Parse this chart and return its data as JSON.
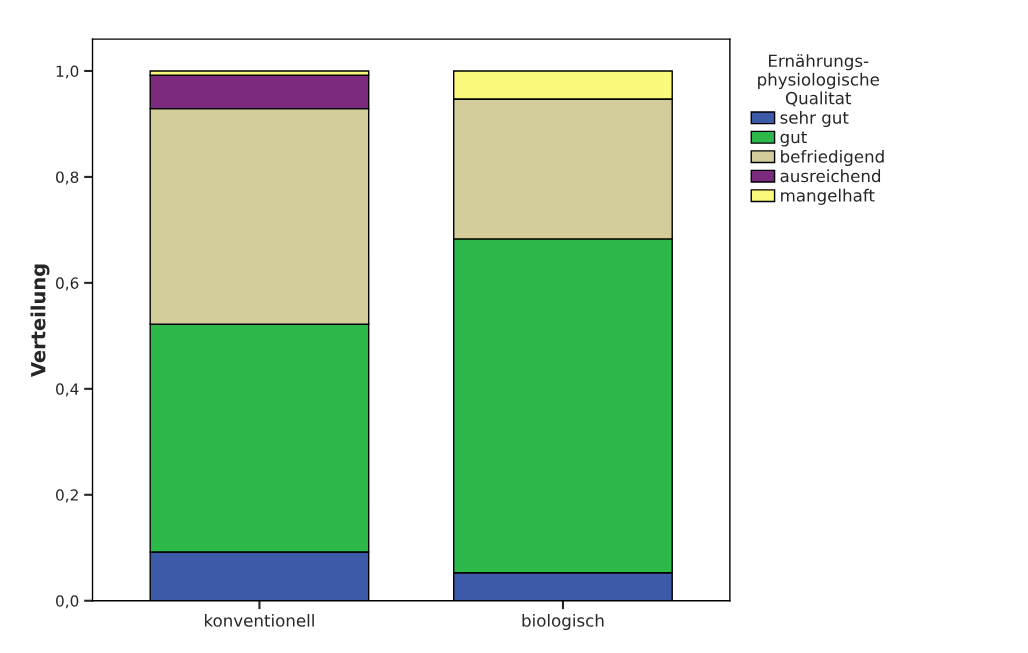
{
  "chart_data": {
    "type": "bar",
    "stacked": true,
    "ylabel": "Verteilung",
    "legend_title": "Ernährungs-\nphysiologische\nQualitat",
    "legend": "top right",
    "grid": false,
    "categories": [
      "konventionell",
      "biologisch"
    ],
    "series": [
      {
        "name": "sehr gut",
        "color": "#3d5aa8",
        "values": [
          0.092,
          0.053
        ]
      },
      {
        "name": "gut",
        "color": "#2db84a",
        "values": [
          0.43,
          0.63
        ]
      },
      {
        "name": "befriedigend",
        "color": "#d3cc9b",
        "values": [
          0.407,
          0.264
        ]
      },
      {
        "name": "ausreichend",
        "color": "#7b2a7d",
        "values": [
          0.063,
          0.0
        ]
      },
      {
        "name": "mangelhaft",
        "color": "#fbf97c",
        "values": [
          0.008,
          0.053
        ]
      }
    ],
    "ylim": [
      0,
      1.06
    ],
    "yticks": [
      {
        "value": 0,
        "label": "0,0"
      },
      {
        "value": 0.2,
        "label": "0,2"
      },
      {
        "value": 0.4,
        "label": "0,4"
      },
      {
        "value": 0.6,
        "label": "0,6"
      },
      {
        "value": 0.8,
        "label": "0,8"
      },
      {
        "value": 1.0,
        "label": "1,0"
      }
    ]
  }
}
